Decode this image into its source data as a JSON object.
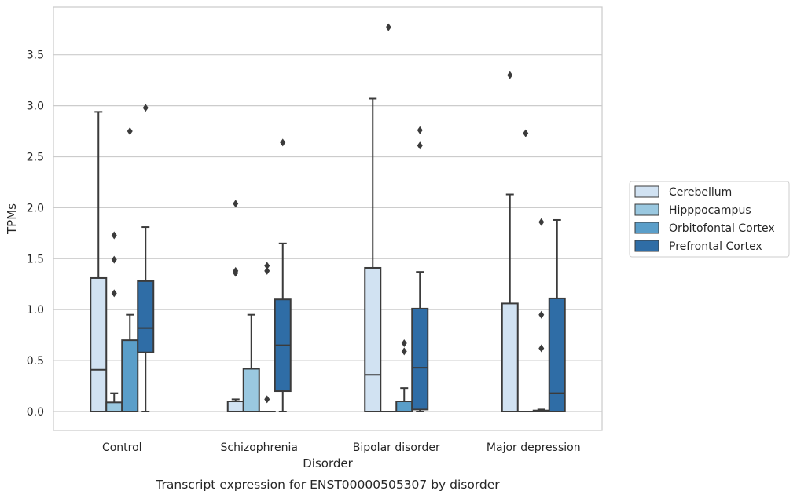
{
  "chart_data": {
    "type": "box",
    "title": "Transcript expression for ENST00000505307 by disorder",
    "xlabel": "Disorder",
    "ylabel": "TPMs",
    "categories": [
      "Control",
      "Schizophrenia",
      "Bipolar disorder",
      "Major depression"
    ],
    "ylim": [
      -0.18,
      3.95
    ],
    "yticks": [
      "0.0",
      "0.5",
      "1.0",
      "1.5",
      "2.0",
      "2.5",
      "3.0",
      "3.5"
    ],
    "grid": true,
    "legend_position": "right",
    "series": [
      {
        "name": "Cerebellum",
        "color": "#d1e2f2",
        "boxes": [
          {
            "q1": 0,
            "median": 0.41,
            "q3": 1.31,
            "whisker_low": 0,
            "whisker_high": 2.94,
            "outliers": []
          },
          {
            "q1": 0,
            "median": 0,
            "q3": 0.1,
            "whisker_low": 0,
            "whisker_high": 0.12,
            "outliers": [
              1.36,
              1.38,
              2.04
            ]
          },
          {
            "q1": 0,
            "median": 0.36,
            "q3": 1.41,
            "whisker_low": 0,
            "whisker_high": 3.07,
            "outliers": []
          },
          {
            "q1": 0,
            "median": 0,
            "q3": 1.06,
            "whisker_low": 0,
            "whisker_high": 2.13,
            "outliers": [
              3.3
            ]
          }
        ]
      },
      {
        "name": "Hipppocampus",
        "color": "#9ac8e0",
        "boxes": [
          {
            "q1": 0,
            "median": 0,
            "q3": 0.09,
            "whisker_low": 0,
            "whisker_high": 0.18,
            "outliers": [
              1.16,
              1.49,
              1.73
            ]
          },
          {
            "q1": 0,
            "median": 0,
            "q3": 0.42,
            "whisker_low": 0,
            "whisker_high": 0.95,
            "outliers": []
          },
          {
            "q1": 0,
            "median": 0,
            "q3": 0,
            "whisker_low": 0,
            "whisker_high": 0,
            "outliers": [
              3.77
            ]
          },
          {
            "q1": 0,
            "median": 0,
            "q3": 0,
            "whisker_low": 0,
            "whisker_high": 0,
            "outliers": [
              2.73
            ]
          }
        ]
      },
      {
        "name": "Orbitofontal Cortex",
        "color": "#5a9ec9",
        "boxes": [
          {
            "q1": 0,
            "median": 0,
            "q3": 0.7,
            "whisker_low": 0,
            "whisker_high": 0.95,
            "outliers": [
              2.75
            ]
          },
          {
            "q1": 0,
            "median": 0,
            "q3": 0,
            "whisker_low": 0,
            "whisker_high": 0,
            "outliers": [
              0.12,
              1.38,
              1.43
            ]
          },
          {
            "q1": 0,
            "median": 0,
            "q3": 0.1,
            "whisker_low": 0,
            "whisker_high": 0.23,
            "outliers": [
              0.59,
              0.67
            ]
          },
          {
            "q1": 0,
            "median": 0,
            "q3": 0.01,
            "whisker_low": 0,
            "whisker_high": 0.02,
            "outliers": [
              0.62,
              0.95,
              1.86
            ]
          }
        ]
      },
      {
        "name": "Prefrontal Cortex",
        "color": "#2f6da6",
        "boxes": [
          {
            "q1": 0.58,
            "median": 0.82,
            "q3": 1.28,
            "whisker_low": 0,
            "whisker_high": 1.81,
            "outliers": [
              2.98
            ]
          },
          {
            "q1": 0.2,
            "median": 0.65,
            "q3": 1.1,
            "whisker_low": 0,
            "whisker_high": 1.65,
            "outliers": [
              2.64
            ]
          },
          {
            "q1": 0.02,
            "median": 0.43,
            "q3": 1.01,
            "whisker_low": 0,
            "whisker_high": 1.37,
            "outliers": [
              2.61,
              2.76
            ]
          },
          {
            "q1": 0,
            "median": 0.18,
            "q3": 1.11,
            "whisker_low": 0,
            "whisker_high": 1.88,
            "outliers": []
          }
        ]
      }
    ]
  }
}
